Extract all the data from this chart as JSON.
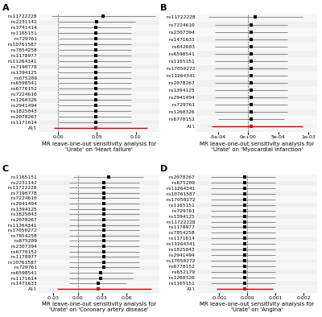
{
  "panel_A": {
    "title": "MR leave-one-out sensitivity analysis for\n'Urate' on 'Heart failure'",
    "snps": [
      "rs11722228",
      "rs2231142",
      "rs3741414",
      "rs1165151",
      "rs729761",
      "rs10761587",
      "rs7854258",
      "rs1178977",
      "rs11264341",
      "rs7190778",
      "rs1394125",
      "rs675209",
      "rs6598541",
      "rs6770152",
      "rs7224610",
      "rs1260326",
      "rs2941494",
      "rs1825043",
      "rs2078267",
      "rs1171614"
    ],
    "estimates": [
      0.058,
      0.05,
      0.048,
      0.048,
      0.048,
      0.048,
      0.048,
      0.048,
      0.048,
      0.048,
      0.048,
      0.048,
      0.048,
      0.048,
      0.048,
      0.048,
      0.048,
      0.048,
      0.048,
      0.048
    ],
    "ci_low": [
      -0.008,
      0.001,
      0.001,
      0.001,
      0.001,
      0.001,
      0.001,
      0.001,
      0.001,
      0.001,
      0.001,
      0.001,
      0.001,
      0.001,
      0.001,
      0.001,
      0.001,
      0.001,
      0.001,
      0.001
    ],
    "ci_high": [
      0.125,
      0.099,
      0.094,
      0.094,
      0.094,
      0.094,
      0.094,
      0.094,
      0.094,
      0.094,
      0.094,
      0.094,
      0.094,
      0.094,
      0.094,
      0.094,
      0.094,
      0.094,
      0.094,
      0.094
    ],
    "all_est": 0.048,
    "all_low": -0.005,
    "all_high": 0.115,
    "xlim": [
      -0.025,
      0.13
    ],
    "xticks": [
      0.0,
      0.05,
      0.1
    ],
    "xticklabels": [
      "0.00",
      "0.05",
      "0.10"
    ],
    "vline": 0.0
  },
  "panel_B": {
    "title": "MR leave-one-out sensitivity analysis for\n'Urate' on 'Myocardial infarction'",
    "snps": [
      "rs11722228",
      "rs7224610",
      "rs2307394",
      "rs1471633",
      "rs642603",
      "rs6598541",
      "rs1165151",
      "rs17050272",
      "rs11264341",
      "rs2078267",
      "rs1394125",
      "rs2941494",
      "rs729761",
      "rs1260326",
      "rs6770152"
    ],
    "estimates": [
      0.00012,
      5e-05,
      5e-05,
      5e-05,
      5e-05,
      5e-05,
      5e-05,
      5e-05,
      5e-05,
      5e-05,
      5e-05,
      5e-05,
      5e-05,
      5e-05,
      5e-05
    ],
    "ci_low": [
      -0.00065,
      -0.00055,
      -0.00055,
      -0.00055,
      -0.00055,
      -0.00055,
      -0.00055,
      -0.00055,
      -0.00055,
      -0.00055,
      -0.00055,
      -0.00055,
      -0.00055,
      -0.00055,
      -0.0005
    ],
    "ci_high": [
      0.0009,
      0.00065,
      0.00065,
      0.00065,
      0.00065,
      0.00065,
      0.00065,
      0.00065,
      0.00065,
      0.00065,
      0.00065,
      0.00065,
      0.00065,
      0.00065,
      0.0006
    ],
    "all_est": 5e-05,
    "all_low": -0.0006,
    "all_high": 0.0009,
    "xlim": [
      -0.00085,
      0.00115
    ],
    "xticks": [
      -0.0005,
      0,
      0.0005,
      0.001
    ],
    "xticklabels": [
      "-5e-04",
      "0e+00",
      "5e-04",
      "1e-03"
    ],
    "vline": 0.0
  },
  "panel_C": {
    "title": "MR leave-one-out sensitivity analysis for\n'Urate' on 'Coronary artery disease'",
    "snps": [
      "rs1165151",
      "rs2231142",
      "rs11722228",
      "rs7190778",
      "rs7224610",
      "rs2941494",
      "rs1394125",
      "rs1825043",
      "rs2078267",
      "rs11264341",
      "rs17050272",
      "rs7854258",
      "rs675209",
      "rs2307394",
      "rs6770152",
      "rs1178977",
      "rs10761587",
      "rs729761",
      "rs6598541",
      "rs1171614",
      "rs1471633"
    ],
    "estimates": [
      0.038,
      0.032,
      0.032,
      0.032,
      0.032,
      0.032,
      0.032,
      0.032,
      0.032,
      0.032,
      0.032,
      0.032,
      0.032,
      0.032,
      0.032,
      0.032,
      0.032,
      0.032,
      0.028,
      0.028,
      0.025
    ],
    "ci_low": [
      -0.005,
      -0.01,
      -0.01,
      -0.01,
      -0.01,
      -0.01,
      -0.01,
      -0.01,
      -0.01,
      -0.01,
      -0.01,
      -0.01,
      -0.01,
      -0.01,
      -0.01,
      -0.01,
      -0.01,
      -0.01,
      -0.01,
      -0.01,
      -0.01
    ],
    "ci_high": [
      0.08,
      0.075,
      0.075,
      0.075,
      0.075,
      0.075,
      0.075,
      0.075,
      0.075,
      0.075,
      0.075,
      0.075,
      0.075,
      0.075,
      0.075,
      0.075,
      0.075,
      0.075,
      0.068,
      0.068,
      0.06
    ],
    "all_est": 0.025,
    "all_low": -0.025,
    "all_high": 0.09,
    "xlim": [
      -0.048,
      0.1
    ],
    "xticks": [
      -0.03,
      0.0,
      0.03,
      0.06
    ],
    "xticklabels": [
      "-0.03",
      "0.00",
      "0.03",
      "0.06"
    ],
    "vline": 0.0
  },
  "panel_D": {
    "title": "MR leave-one-out sensitivity analysis for\n'Urate' on 'Angina'",
    "snps": [
      "rs2078267",
      "rs675209",
      "rs11264341",
      "rs10761587",
      "rs17050272",
      "rs1165151",
      "rs729761",
      "rs1394125",
      "rs11722228",
      "rs1178977",
      "rs7854258",
      "rs1171614",
      "rs11264341",
      "rs1825043",
      "rs2941494",
      "rs17050272",
      "rs6770152",
      "rs652179",
      "rs1260326",
      "rs1165151"
    ],
    "estimates": [
      -0.0001,
      -0.0001,
      -0.0001,
      -0.0001,
      -0.0001,
      -0.0001,
      -0.0001,
      -0.0001,
      -0.0001,
      -0.0001,
      -0.0001,
      -0.0001,
      -0.0001,
      -0.0001,
      -0.0001,
      -0.0001,
      -0.0001,
      -0.0001,
      -0.0001,
      -0.0001
    ],
    "ci_low": [
      -0.0013,
      -0.0013,
      -0.0013,
      -0.0013,
      -0.0013,
      -0.0013,
      -0.0013,
      -0.0013,
      -0.0013,
      -0.0013,
      -0.0013,
      -0.0013,
      -0.0013,
      -0.0013,
      -0.0013,
      -0.0013,
      -0.0013,
      -0.0013,
      -0.0013,
      -0.0013
    ],
    "ci_high": [
      0.001,
      0.001,
      0.001,
      0.001,
      0.001,
      0.001,
      0.001,
      0.001,
      0.001,
      0.001,
      0.001,
      0.001,
      0.001,
      0.001,
      0.001,
      0.001,
      0.001,
      0.001,
      0.001,
      0.001
    ],
    "all_est": -0.0001,
    "all_low": -0.0011,
    "all_high": 0.0009,
    "xlim": [
      -0.0018,
      0.0025
    ],
    "xticks": [
      -0.001,
      0.0,
      0.001,
      0.002
    ],
    "xticklabels": [
      "-0.001",
      "0.000",
      "0.001",
      "0.002"
    ],
    "vline": 0.0
  },
  "dot_color": "#000000",
  "line_color": "#888888",
  "all_line_color": "#cc0000",
  "all_dot_color": "#cc0000",
  "bg_color": "#f0f0f0",
  "stripe_color": "#e0e0e0",
  "vline_color": "#555555",
  "label_fontsize": 4.5,
  "tick_fontsize": 4.5,
  "title_fontsize": 5.0
}
